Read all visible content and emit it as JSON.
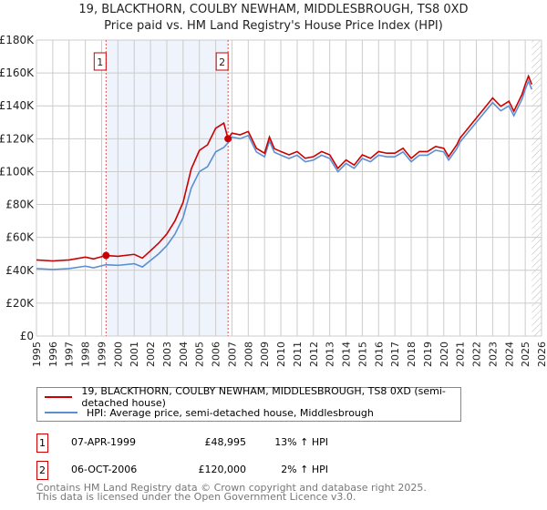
{
  "chart_data": {
    "type": "line",
    "title": "19, BLACKTHORN, COULBY NEWHAM, MIDDLESBROUGH, TS8 0XD",
    "subtitle": "Price paid vs. HM Land Registry's House Price Index (HPI)",
    "xlim": [
      1995,
      2026
    ],
    "ylim": [
      0,
      180000
    ],
    "yticks": [
      0,
      20000,
      40000,
      60000,
      80000,
      100000,
      120000,
      140000,
      160000,
      180000
    ],
    "ytick_labels": [
      "£0",
      "£20K",
      "£40K",
      "£60K",
      "£80K",
      "£100K",
      "£120K",
      "£140K",
      "£160K",
      "£180K"
    ],
    "xticks": [
      1995,
      1996,
      1997,
      1998,
      1999,
      2000,
      2001,
      2002,
      2003,
      2004,
      2005,
      2006,
      2007,
      2008,
      2009,
      2010,
      2011,
      2012,
      2013,
      2014,
      2015,
      2016,
      2017,
      2018,
      2019,
      2020,
      2021,
      2022,
      2023,
      2024,
      2025,
      2026
    ],
    "grid": true,
    "series": [
      {
        "name": "19, BLACKTHORN, COULBY NEWHAM, MIDDLESBROUGH, TS8 0XD (semi-detached house)",
        "color": "#cc0000",
        "x": [
          1995,
          1996,
          1997,
          1998,
          1998.5,
          1999.27,
          2000,
          2001,
          2001.5,
          2002,
          2002.5,
          2003,
          2003.5,
          2004,
          2004.5,
          2005,
          2005.5,
          2006,
          2006.5,
          2006.76,
          2007,
          2007.5,
          2008,
          2008.5,
          2009,
          2009.3,
          2009.6,
          2010,
          2010.5,
          2011,
          2011.5,
          2012,
          2012.5,
          2013,
          2013.5,
          2014,
          2014.5,
          2015,
          2015.5,
          2016,
          2016.5,
          2017,
          2017.5,
          2018,
          2018.5,
          2019,
          2019.5,
          2020,
          2020.3,
          2020.8,
          2021,
          2021.5,
          2022,
          2022.5,
          2023,
          2023.5,
          2024,
          2024.3,
          2024.8,
          2025,
          2025.2,
          2025.4
        ],
        "y": [
          46300,
          45700,
          46300,
          48000,
          46900,
          48995,
          48500,
          49700,
          47400,
          51900,
          56500,
          62100,
          70000,
          81300,
          101600,
          112900,
          116300,
          126400,
          129500,
          120000,
          123400,
          122400,
          124400,
          114200,
          111200,
          121000,
          114000,
          112200,
          110200,
          112200,
          108100,
          109100,
          112200,
          110200,
          102000,
          107100,
          104000,
          110200,
          108100,
          112200,
          111200,
          111200,
          114200,
          108100,
          112200,
          112200,
          115300,
          114200,
          109100,
          116300,
          120400,
          126500,
          132600,
          138700,
          144800,
          139700,
          142800,
          136700,
          146900,
          153000,
          158100,
          153000
        ]
      },
      {
        "name": "HPI: Average price, semi-detached house, Middlesbrough",
        "color": "#5b8fd4",
        "x": [
          1995,
          1996,
          1997,
          1998,
          1998.5,
          1999.27,
          2000,
          2001,
          2001.5,
          2002,
          2002.5,
          2003,
          2003.5,
          2004,
          2004.5,
          2005,
          2005.5,
          2006,
          2006.5,
          2006.76,
          2007,
          2007.5,
          2008,
          2008.5,
          2009,
          2009.3,
          2009.6,
          2010,
          2010.5,
          2011,
          2011.5,
          2012,
          2012.5,
          2013,
          2013.5,
          2014,
          2014.5,
          2015,
          2015.5,
          2016,
          2016.5,
          2017,
          2017.5,
          2018,
          2018.5,
          2019,
          2019.5,
          2020,
          2020.3,
          2020.8,
          2021,
          2021.5,
          2022,
          2022.5,
          2023,
          2023.5,
          2024,
          2024.3,
          2024.8,
          2025,
          2025.2,
          2025.4
        ],
        "y": [
          41000,
          40500,
          41000,
          42500,
          41500,
          43400,
          43000,
          44000,
          42000,
          46000,
          50000,
          55000,
          62000,
          72000,
          90000,
          100000,
          103000,
          112000,
          114700,
          117600,
          121000,
          120000,
          122000,
          112000,
          109000,
          118600,
          111800,
          110000,
          108000,
          110000,
          106000,
          107000,
          110000,
          108000,
          100000,
          105000,
          102000,
          108000,
          106000,
          110000,
          109000,
          109000,
          112000,
          106000,
          110000,
          110000,
          113000,
          112000,
          107000,
          114000,
          118000,
          124000,
          130000,
          136000,
          142000,
          137000,
          140000,
          134000,
          144000,
          150000,
          155000,
          150000
        ]
      }
    ],
    "sales": [
      {
        "label": "1",
        "x": 1999.27,
        "y": 48995,
        "date": "07-APR-1999",
        "price": "£48,995",
        "hpi_change": "13% ↑ HPI"
      },
      {
        "label": "2",
        "x": 2006.76,
        "y": 120000,
        "date": "06-OCT-2006",
        "price": "£120,000",
        "hpi_change": "2% ↑ HPI"
      }
    ],
    "shaded_range": [
      1999.27,
      2006.76
    ],
    "forecast_hatch_from": 2025.4
  },
  "footer": {
    "line1": "Contains HM Land Registry data © Crown copyright and database right 2025.",
    "line2": "This data is licensed under the Open Government Licence v3.0."
  }
}
